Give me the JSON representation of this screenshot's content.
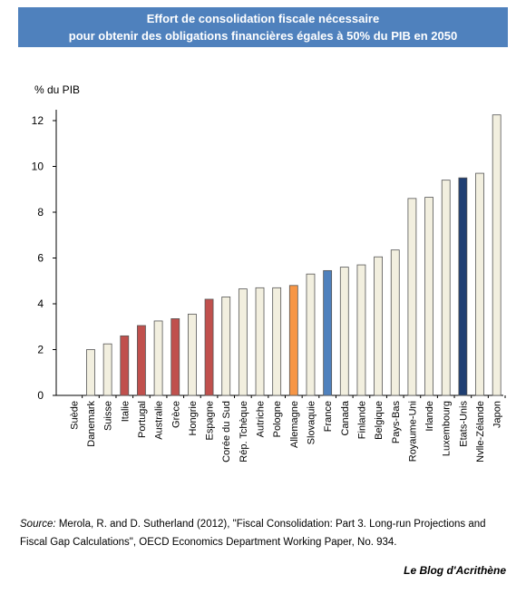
{
  "title_line1": "Effort de consolidation fiscale nécessaire",
  "title_line2": "pour obtenir des obligations financières égales à 50% du PIB en 2050",
  "chart_data": {
    "type": "bar",
    "ylabel": "% du PIB",
    "ylim": [
      0,
      12
    ],
    "yticks": [
      0,
      2,
      4,
      6,
      8,
      10,
      12
    ],
    "categories": [
      "Suède",
      "Danemark",
      "Suisse",
      "Italie",
      "Portugal",
      "Australie",
      "Grèce",
      "Hongrie",
      "Espagne",
      "Corée du Sud",
      "Rép. Tchèque",
      "Autriche",
      "Pologne",
      "Allemagne",
      "Slovaquie",
      "France",
      "Canada",
      "Finlande",
      "Belgique",
      "Pays-Bas",
      "Royaume-Uni",
      "Irlande",
      "Luxembourg",
      "Etats-Unis",
      "Nvlle-Zélande",
      "Japon"
    ],
    "values": [
      0,
      2.0,
      2.25,
      2.6,
      3.05,
      3.25,
      3.35,
      3.55,
      4.2,
      4.3,
      4.65,
      4.7,
      4.7,
      4.8,
      5.3,
      5.45,
      5.6,
      5.7,
      6.05,
      6.35,
      8.6,
      8.65,
      9.4,
      9.5,
      9.7,
      12.25
    ],
    "colors": {
      "default": "#f2efdf",
      "southern_europe": "#c0504d",
      "allemagne": "#f79646",
      "france": "#4f81bd",
      "etats_unis": "#1f3f73"
    },
    "bar_color_keys": [
      "default",
      "default",
      "default",
      "southern_europe",
      "southern_europe",
      "default",
      "southern_europe",
      "default",
      "southern_europe",
      "default",
      "default",
      "default",
      "default",
      "allemagne",
      "default",
      "france",
      "default",
      "default",
      "default",
      "default",
      "default",
      "default",
      "default",
      "etats_unis",
      "default",
      "default"
    ]
  },
  "source_label": "Source:",
  "source_text": "Merola, R. and D. Sutherland (2012), \"Fiscal Consolidation: Part 3. Long-run Projections and Fiscal Gap Calculations\", OECD Economics Department Working Paper, No. 934.",
  "blog": "Le Blog d'Acrithène"
}
